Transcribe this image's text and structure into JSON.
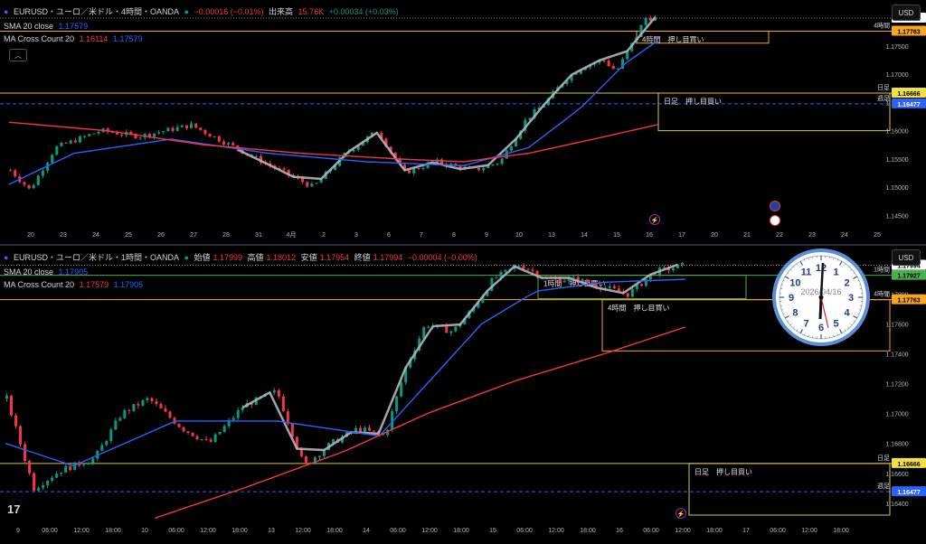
{
  "top_panel": {
    "symbol": "EURUSD・ユーロ／米ドル・4時間・OANDA",
    "change": "−0.00016 (−0.01%)",
    "volume_label": "出来高",
    "volume_value": "15.76K",
    "volume_change": "+0.00034 (+0.03%)",
    "sma_label": "SMA 20 close",
    "sma_value": "1.17579",
    "macc_label": "MA Cross Count 20",
    "macc_v1": "1.16114",
    "macc_v2": "1.17579",
    "currency": "USD",
    "collapse_glyph": "︿"
  },
  "bottom_panel": {
    "symbol": "EURUSD・ユーロ／米ドル・1時間・OANDA",
    "open_label": "始値",
    "open_value": "1.17999",
    "high_label": "高値",
    "high_value": "1.18012",
    "low_label": "安値",
    "low_value": "1.17954",
    "close_label": "終値",
    "close_value": "1.17994",
    "change": "−0.00004 (−0.00%)",
    "sma_label": "SMA 20 close",
    "sma_value": "1.17905",
    "macc_label": "MA Cross Count 20",
    "macc_v1": "1.17579",
    "macc_v2": "1.17905",
    "currency": "USD"
  },
  "clock": {
    "date": "2026/04/16",
    "numbers": [
      "12",
      "1",
      "2",
      "3",
      "4",
      "5",
      "6",
      "7",
      "8",
      "9",
      "10",
      "11"
    ]
  },
  "logo": "17",
  "colors": {
    "up": "#089981",
    "down": "#f23645",
    "sma": "#2962ff",
    "ma": "#f23645",
    "zigzag": "#b2b5be",
    "orange": "#f5a623",
    "yellow": "#d8c84a",
    "green": "#4caf50",
    "blue_dash": "#2962ff"
  },
  "chart_data": [
    {
      "type": "candlestick",
      "title": "EURUSD 4時間",
      "ylim": [
        1.1425,
        1.1825
      ],
      "y_ticks": [
        "1.17500",
        "1.17000",
        "1.16500",
        "1.16000",
        "1.15500",
        "1.15000",
        "1.14500"
      ],
      "x_ticks": [
        "20",
        "23",
        "24",
        "25",
        "26",
        "27",
        "28",
        "31",
        "4月",
        "2",
        "3",
        "6",
        "7",
        "8",
        "9",
        "10",
        "13",
        "14",
        "15",
        "16",
        "17",
        "20",
        "21",
        "22",
        "23",
        "24",
        "25"
      ],
      "last_price": 1.17994,
      "price_labels": [
        {
          "value": 1.17994,
          "text": "1.17994",
          "kind": "last"
        },
        {
          "value": 1.17763,
          "text": "1.17763",
          "kind": "orange",
          "name": "4時間"
        },
        {
          "value": 1.16666,
          "text": "1.16666",
          "kind": "yellow",
          "name": "日足"
        },
        {
          "value": 1.16477,
          "text": "1.16477",
          "kind": "blue",
          "name": "週足"
        }
      ],
      "annotations": [
        {
          "text": "4時間　押し目買い",
          "box_top": 1.17763,
          "box_bottom": 1.1755
        },
        {
          "text": "日足　押し目買い",
          "box_top": 1.16666,
          "box_bottom": 1.16
        }
      ]
    },
    {
      "type": "candlestick",
      "title": "EURUSD 1時間",
      "ylim": [
        1.1632,
        1.181
      ],
      "y_ticks": [
        "1.17800",
        "1.17600",
        "1.17400",
        "1.17200",
        "1.17000",
        "1.16800",
        "1.16600",
        "1.16400"
      ],
      "x_ticks": [
        "9",
        "06:00",
        "12:00",
        "18:00",
        "10",
        "06:00",
        "12:00",
        "18:00",
        "13",
        "12:00",
        "18:00",
        "14",
        "06:00",
        "12:00",
        "18:00",
        "15",
        "06:00",
        "12:00",
        "18:00",
        "16",
        "06:00",
        "12:00",
        "18:00",
        "17",
        "06:00",
        "12:00",
        "18:00"
      ],
      "last_price": 1.17994,
      "price_labels": [
        {
          "value": 1.17994,
          "text": "1.17994",
          "kind": "last"
        },
        {
          "value": 1.17927,
          "text": "1.17927",
          "kind": "green",
          "name": "1時間"
        },
        {
          "value": 1.17763,
          "text": "1.17763",
          "kind": "orange",
          "name": "4時間"
        },
        {
          "value": 1.16666,
          "text": "1.16666",
          "kind": "yellow",
          "name": "日足"
        },
        {
          "value": 1.16477,
          "text": "1.16477",
          "kind": "blue",
          "name": "週足"
        }
      ],
      "annotations": [
        {
          "text": "1時間　押し目買い",
          "box_top": 1.17927,
          "box_bottom": 1.1777
        },
        {
          "text": "4時間　押し目買い",
          "box_top": 1.17763,
          "box_bottom": 1.1742
        },
        {
          "text": "日足　押し目買い",
          "box_top": 1.16666,
          "box_bottom": 1.1632
        }
      ]
    }
  ]
}
